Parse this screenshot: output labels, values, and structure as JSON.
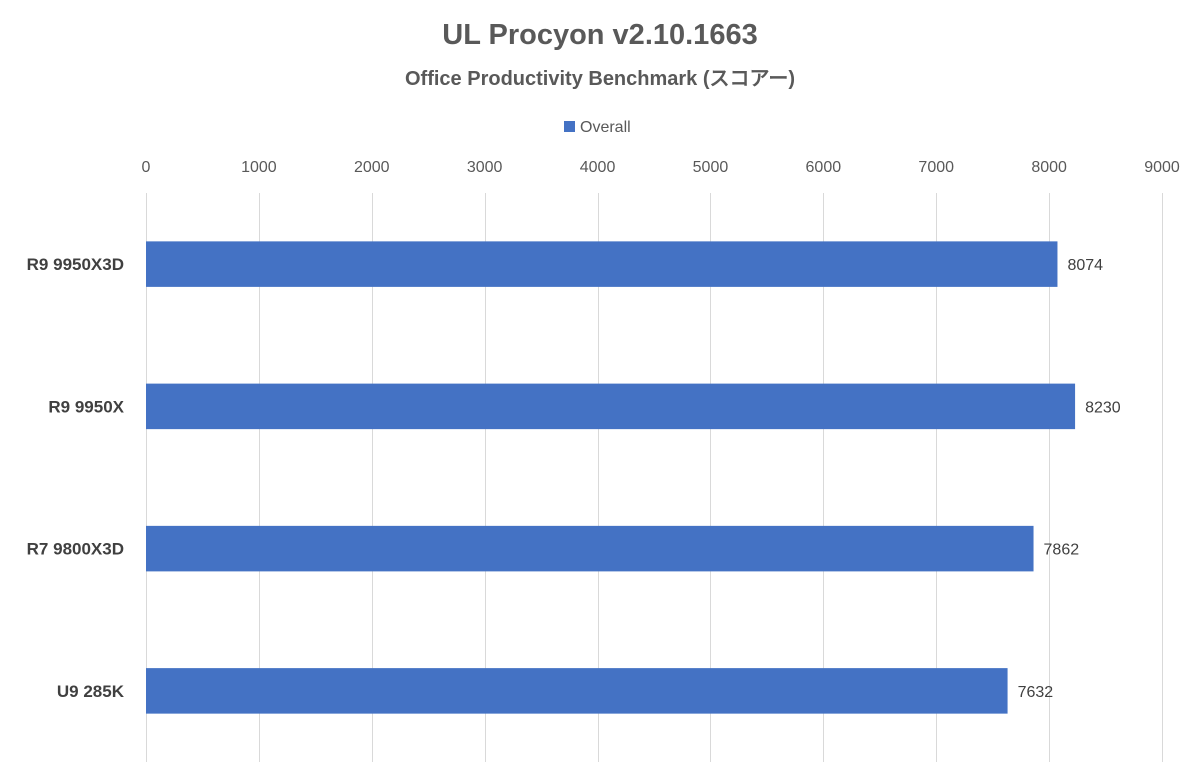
{
  "chart_data": {
    "type": "bar",
    "orientation": "horizontal",
    "title": "UL Procyon v2.10.1663",
    "subtitle": "Office Productivity Benchmark (スコアー)",
    "legend": {
      "position": "top",
      "entries": [
        "Overall"
      ]
    },
    "categories": [
      "R9 9950X3D",
      "R9 9950X",
      "R7 9800X3D",
      "U9 285K"
    ],
    "series": [
      {
        "name": "Overall",
        "color": "#4472c4",
        "values": [
          8074,
          8230,
          7862,
          7632
        ]
      }
    ],
    "x_axis": {
      "position": "top",
      "min": 0,
      "max": 9000,
      "ticks": [
        0,
        1000,
        2000,
        3000,
        4000,
        5000,
        6000,
        7000,
        8000,
        9000
      ]
    },
    "grid": true,
    "data_labels": true
  }
}
